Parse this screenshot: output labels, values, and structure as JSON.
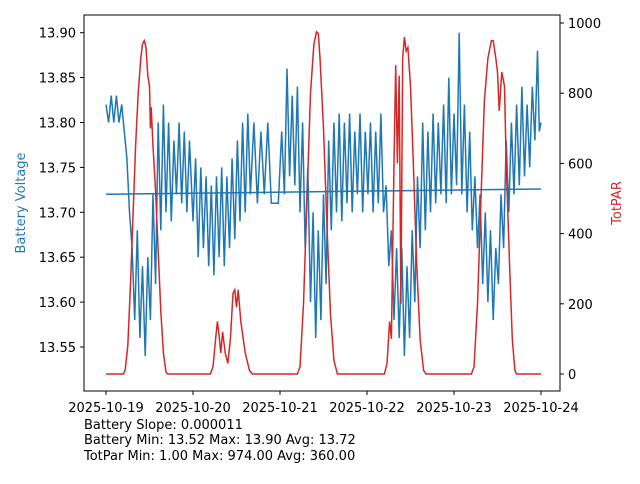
{
  "chart_data": {
    "type": "line",
    "xlabel": "",
    "ylabel_left": "Battery Voltage",
    "ylabel_right": "TotPAR",
    "x_ticks": [
      "2025-10-19",
      "2025-10-20",
      "2025-10-21",
      "2025-10-22",
      "2025-10-23",
      "2025-10-24"
    ],
    "x_unit": "days since 2025-10-19",
    "xlim": [
      -0.25,
      5.2
    ],
    "ylim_left": [
      13.505,
      13.92
    ],
    "ylim_right": [
      -50,
      1025
    ],
    "y_ticks_left": [
      "13.55",
      "13.60",
      "13.65",
      "13.70",
      "13.75",
      "13.80",
      "13.85",
      "13.90"
    ],
    "y_ticks_right": [
      "0",
      "200",
      "400",
      "600",
      "800",
      "1000"
    ],
    "colors": {
      "battery": "#1f77b4",
      "par": "#d62728"
    },
    "series": [
      {
        "name": "Battery Voltage",
        "axis": "left",
        "points": [
          [
            0,
            13.82
          ],
          [
            0.03,
            13.8
          ],
          [
            0.06,
            13.83
          ],
          [
            0.09,
            13.8
          ],
          [
            0.12,
            13.83
          ],
          [
            0.15,
            13.8
          ],
          [
            0.18,
            13.82
          ],
          [
            0.21,
            13.79
          ],
          [
            0.24,
            13.76
          ],
          [
            0.27,
            13.7
          ],
          [
            0.3,
            13.66
          ],
          [
            0.33,
            13.58
          ],
          [
            0.36,
            13.68
          ],
          [
            0.39,
            13.56
          ],
          [
            0.42,
            13.64
          ],
          [
            0.45,
            13.54
          ],
          [
            0.48,
            13.65
          ],
          [
            0.51,
            13.58
          ],
          [
            0.54,
            13.72
          ],
          [
            0.57,
            13.62
          ],
          [
            0.6,
            13.8
          ],
          [
            0.63,
            13.68
          ],
          [
            0.66,
            13.82
          ],
          [
            0.69,
            13.7
          ],
          [
            0.72,
            13.8
          ],
          [
            0.75,
            13.69
          ],
          [
            0.78,
            13.78
          ],
          [
            0.81,
            13.72
          ],
          [
            0.84,
            13.8
          ],
          [
            0.87,
            13.71
          ],
          [
            0.9,
            13.79
          ],
          [
            0.93,
            13.7
          ],
          [
            0.96,
            13.78
          ],
          [
            1.0,
            13.69
          ],
          [
            1.03,
            13.76
          ],
          [
            1.06,
            13.65
          ],
          [
            1.09,
            13.75
          ],
          [
            1.12,
            13.66
          ],
          [
            1.15,
            13.74
          ],
          [
            1.18,
            13.64
          ],
          [
            1.21,
            13.73
          ],
          [
            1.24,
            13.63
          ],
          [
            1.27,
            13.74
          ],
          [
            1.3,
            13.65
          ],
          [
            1.33,
            13.75
          ],
          [
            1.36,
            13.64
          ],
          [
            1.39,
            13.74
          ],
          [
            1.42,
            13.66
          ],
          [
            1.45,
            13.76
          ],
          [
            1.48,
            13.67
          ],
          [
            1.51,
            13.78
          ],
          [
            1.54,
            13.69
          ],
          [
            1.57,
            13.8
          ],
          [
            1.6,
            13.7
          ],
          [
            1.63,
            13.81
          ],
          [
            1.66,
            13.72
          ],
          [
            1.7,
            13.8
          ],
          [
            1.74,
            13.71
          ],
          [
            1.78,
            13.79
          ],
          [
            1.82,
            13.72
          ],
          [
            1.86,
            13.8
          ],
          [
            1.9,
            13.71
          ],
          [
            1.94,
            13.71
          ],
          [
            1.98,
            13.71
          ],
          [
            2.02,
            13.79
          ],
          [
            2.05,
            13.72
          ],
          [
            2.08,
            13.86
          ],
          [
            2.11,
            13.74
          ],
          [
            2.14,
            13.83
          ],
          [
            2.17,
            13.73
          ],
          [
            2.2,
            13.84
          ],
          [
            2.23,
            13.7
          ],
          [
            2.26,
            13.8
          ],
          [
            2.29,
            13.66
          ],
          [
            2.32,
            13.75
          ],
          [
            2.35,
            13.6
          ],
          [
            2.38,
            13.7
          ],
          [
            2.41,
            13.56
          ],
          [
            2.44,
            13.68
          ],
          [
            2.47,
            13.58
          ],
          [
            2.5,
            13.72
          ],
          [
            2.53,
            13.62
          ],
          [
            2.56,
            13.78
          ],
          [
            2.59,
            13.68
          ],
          [
            2.62,
            13.8
          ],
          [
            2.65,
            13.7
          ],
          [
            2.68,
            13.81
          ],
          [
            2.71,
            13.69
          ],
          [
            2.74,
            13.8
          ],
          [
            2.77,
            13.71
          ],
          [
            2.8,
            13.81
          ],
          [
            2.83,
            13.7
          ],
          [
            2.86,
            13.79
          ],
          [
            2.89,
            13.72
          ],
          [
            2.92,
            13.81
          ],
          [
            2.95,
            13.7
          ],
          [
            2.98,
            13.79
          ],
          [
            3.01,
            13.72
          ],
          [
            3.04,
            13.8
          ],
          [
            3.07,
            13.7
          ],
          [
            3.1,
            13.79
          ],
          [
            3.13,
            13.71
          ],
          [
            3.16,
            13.81
          ],
          [
            3.19,
            13.7
          ],
          [
            3.22,
            13.73
          ],
          [
            3.25,
            13.64
          ],
          [
            3.28,
            13.68
          ],
          [
            3.31,
            13.58
          ],
          [
            3.34,
            13.66
          ],
          [
            3.37,
            13.56
          ],
          [
            3.4,
            13.66
          ],
          [
            3.43,
            13.54
          ],
          [
            3.46,
            13.64
          ],
          [
            3.49,
            13.56
          ],
          [
            3.52,
            13.68
          ],
          [
            3.55,
            13.6
          ],
          [
            3.58,
            13.74
          ],
          [
            3.61,
            13.66
          ],
          [
            3.64,
            13.8
          ],
          [
            3.67,
            13.68
          ],
          [
            3.7,
            13.79
          ],
          [
            3.73,
            13.7
          ],
          [
            3.76,
            13.81
          ],
          [
            3.79,
            13.71
          ],
          [
            3.82,
            13.8
          ],
          [
            3.85,
            13.72
          ],
          [
            3.88,
            13.82
          ],
          [
            3.91,
            13.71
          ],
          [
            3.94,
            13.85
          ],
          [
            3.97,
            13.72
          ],
          [
            4.0,
            13.81
          ],
          [
            4.03,
            13.73
          ],
          [
            4.06,
            13.9
          ],
          [
            4.09,
            13.72
          ],
          [
            4.12,
            13.82
          ],
          [
            4.15,
            13.7
          ],
          [
            4.18,
            13.79
          ],
          [
            4.21,
            13.68
          ],
          [
            4.24,
            13.74
          ],
          [
            4.27,
            13.66
          ],
          [
            4.3,
            13.72
          ],
          [
            4.33,
            13.62
          ],
          [
            4.36,
            13.7
          ],
          [
            4.39,
            13.6
          ],
          [
            4.42,
            13.68
          ],
          [
            4.45,
            13.58
          ],
          [
            4.48,
            13.66
          ],
          [
            4.51,
            13.62
          ],
          [
            4.54,
            13.72
          ],
          [
            4.57,
            13.66
          ],
          [
            4.6,
            13.78
          ],
          [
            4.63,
            13.7
          ],
          [
            4.66,
            13.8
          ],
          [
            4.69,
            13.72
          ],
          [
            4.72,
            13.82
          ],
          [
            4.75,
            13.73
          ],
          [
            4.78,
            13.84
          ],
          [
            4.81,
            13.74
          ],
          [
            4.84,
            13.82
          ],
          [
            4.87,
            13.75
          ],
          [
            4.9,
            13.84
          ],
          [
            4.93,
            13.78
          ],
          [
            4.96,
            13.88
          ],
          [
            4.98,
            13.79
          ],
          [
            5.0,
            13.8
          ]
        ]
      },
      {
        "name": "Battery Trend",
        "axis": "left",
        "points": [
          [
            0,
            13.72
          ],
          [
            5,
            13.726
          ]
        ]
      },
      {
        "name": "TotPAR",
        "axis": "right",
        "points": [
          [
            0,
            0
          ],
          [
            0.2,
            0
          ],
          [
            0.22,
            10
          ],
          [
            0.25,
            80
          ],
          [
            0.28,
            250
          ],
          [
            0.31,
            450
          ],
          [
            0.34,
            650
          ],
          [
            0.37,
            800
          ],
          [
            0.4,
            900
          ],
          [
            0.42,
            940
          ],
          [
            0.44,
            950
          ],
          [
            0.46,
            930
          ],
          [
            0.48,
            850
          ],
          [
            0.5,
            820
          ],
          [
            0.51,
            700
          ],
          [
            0.52,
            760
          ],
          [
            0.54,
            650
          ],
          [
            0.57,
            520
          ],
          [
            0.6,
            350
          ],
          [
            0.63,
            180
          ],
          [
            0.66,
            60
          ],
          [
            0.69,
            5
          ],
          [
            0.71,
            0
          ],
          [
            1.2,
            0
          ],
          [
            1.23,
            20
          ],
          [
            1.26,
            100
          ],
          [
            1.28,
            150
          ],
          [
            1.3,
            110
          ],
          [
            1.32,
            60
          ],
          [
            1.34,
            120
          ],
          [
            1.37,
            60
          ],
          [
            1.4,
            30
          ],
          [
            1.43,
            100
          ],
          [
            1.46,
            230
          ],
          [
            1.48,
            240
          ],
          [
            1.5,
            190
          ],
          [
            1.52,
            240
          ],
          [
            1.55,
            150
          ],
          [
            1.6,
            60
          ],
          [
            1.65,
            10
          ],
          [
            1.68,
            0
          ],
          [
            2.2,
            0
          ],
          [
            2.23,
            20
          ],
          [
            2.27,
            200
          ],
          [
            2.31,
            500
          ],
          [
            2.35,
            800
          ],
          [
            2.39,
            940
          ],
          [
            2.42,
            975
          ],
          [
            2.44,
            970
          ],
          [
            2.46,
            900
          ],
          [
            2.5,
            700
          ],
          [
            2.54,
            420
          ],
          [
            2.58,
            170
          ],
          [
            2.62,
            40
          ],
          [
            2.66,
            0
          ],
          [
            3.2,
            0
          ],
          [
            3.23,
            30
          ],
          [
            3.26,
            150
          ],
          [
            3.28,
            100
          ],
          [
            3.31,
            600
          ],
          [
            3.33,
            880
          ],
          [
            3.35,
            600
          ],
          [
            3.37,
            850
          ],
          [
            3.39,
            200
          ],
          [
            3.41,
            900
          ],
          [
            3.43,
            960
          ],
          [
            3.45,
            920
          ],
          [
            3.47,
            930
          ],
          [
            3.5,
            820
          ],
          [
            3.53,
            620
          ],
          [
            3.57,
            320
          ],
          [
            3.61,
            100
          ],
          [
            3.65,
            10
          ],
          [
            3.68,
            0
          ],
          [
            4.2,
            0
          ],
          [
            4.23,
            20
          ],
          [
            4.27,
            200
          ],
          [
            4.31,
            500
          ],
          [
            4.35,
            780
          ],
          [
            4.39,
            900
          ],
          [
            4.43,
            950
          ],
          [
            4.45,
            950
          ],
          [
            4.48,
            900
          ],
          [
            4.5,
            860
          ],
          [
            4.52,
            750
          ],
          [
            4.55,
            860
          ],
          [
            4.58,
            820
          ],
          [
            4.6,
            600
          ],
          [
            4.64,
            300
          ],
          [
            4.67,
            100
          ],
          [
            4.7,
            10
          ],
          [
            4.72,
            0
          ],
          [
            5.0,
            0
          ]
        ]
      }
    ]
  },
  "stats": {
    "slope": "Battery Slope: 0.000011",
    "battery": "Battery Min: 13.52 Max: 13.90 Avg: 13.72",
    "par": "TotPar Min: 1.00 Max: 974.00 Avg: 360.00"
  }
}
